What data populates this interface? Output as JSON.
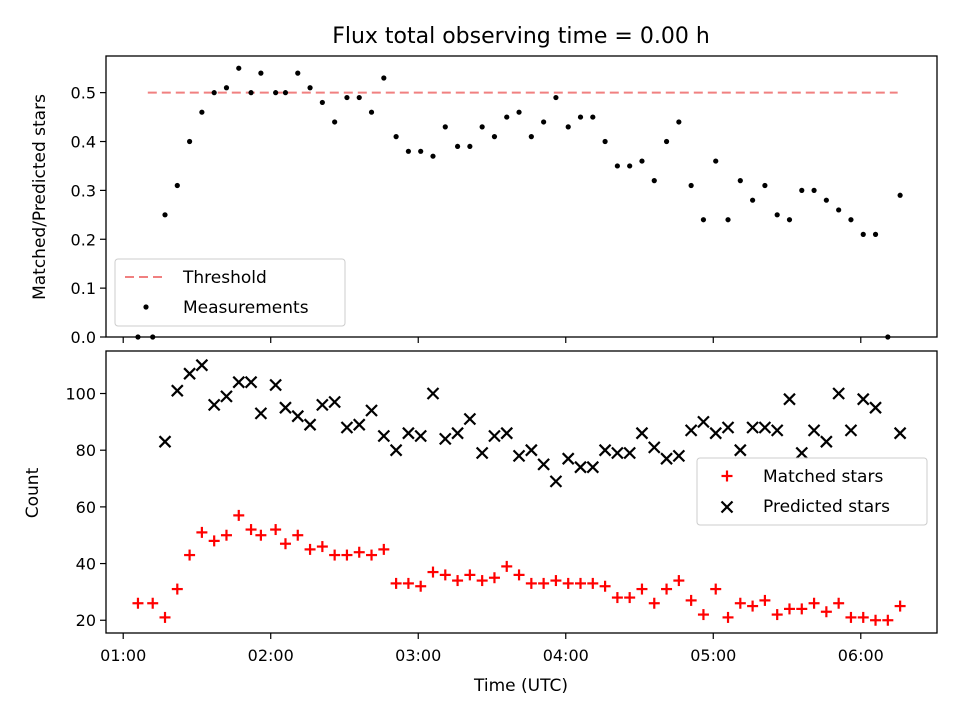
{
  "colors": {
    "threshold": "#f08080",
    "measurements": "#000000",
    "matched": "#ff0000",
    "predicted": "#000000"
  },
  "chart_data": [
    {
      "type": "scatter",
      "title": "Flux total observing time = 0.00 h",
      "xlabel": "",
      "ylabel": "Matched/Predicted stars",
      "ylim": [
        0,
        0.575
      ],
      "yticks": [
        0,
        0.1,
        0.2,
        0.3,
        0.4,
        0.5
      ],
      "ytick_labels": [
        "0.0",
        "0.1",
        "0.2",
        "0.3",
        "0.4",
        "0.5"
      ],
      "grid": false,
      "legend_position": "lower-left",
      "threshold": {
        "name": "Threshold",
        "y": 0.5,
        "x": [
          "01:10",
          "06:15"
        ],
        "style": "dashed"
      },
      "series": [
        {
          "name": "Measurements",
          "marker": "dot",
          "points": [
            [
              "01:06",
              0.0
            ],
            [
              "01:12",
              0.0
            ],
            [
              "01:17",
              0.25
            ],
            [
              "01:22",
              0.31
            ],
            [
              "01:27",
              0.4
            ],
            [
              "01:32",
              0.46
            ],
            [
              "01:37",
              0.5
            ],
            [
              "01:42",
              0.51
            ],
            [
              "01:47",
              0.55
            ],
            [
              "01:52",
              0.5
            ],
            [
              "01:56",
              0.54
            ],
            [
              "02:02",
              0.5
            ],
            [
              "02:06",
              0.5
            ],
            [
              "02:11",
              0.54
            ],
            [
              "02:16",
              0.51
            ],
            [
              "02:21",
              0.48
            ],
            [
              "02:26",
              0.44
            ],
            [
              "02:31",
              0.49
            ],
            [
              "02:36",
              0.49
            ],
            [
              "02:41",
              0.46
            ],
            [
              "02:46",
              0.53
            ],
            [
              "02:51",
              0.41
            ],
            [
              "02:56",
              0.38
            ],
            [
              "03:01",
              0.38
            ],
            [
              "03:06",
              0.37
            ],
            [
              "03:11",
              0.43
            ],
            [
              "03:16",
              0.39
            ],
            [
              "03:21",
              0.39
            ],
            [
              "03:26",
              0.43
            ],
            [
              "03:31",
              0.41
            ],
            [
              "03:36",
              0.45
            ],
            [
              "03:41",
              0.46
            ],
            [
              "03:46",
              0.41
            ],
            [
              "03:51",
              0.44
            ],
            [
              "03:56",
              0.49
            ],
            [
              "04:01",
              0.43
            ],
            [
              "04:06",
              0.45
            ],
            [
              "04:11",
              0.45
            ],
            [
              "04:16",
              0.4
            ],
            [
              "04:21",
              0.35
            ],
            [
              "04:26",
              0.35
            ],
            [
              "04:31",
              0.36
            ],
            [
              "04:36",
              0.32
            ],
            [
              "04:41",
              0.4
            ],
            [
              "04:46",
              0.44
            ],
            [
              "04:51",
              0.31
            ],
            [
              "04:56",
              0.24
            ],
            [
              "05:01",
              0.36
            ],
            [
              "05:06",
              0.24
            ],
            [
              "05:11",
              0.32
            ],
            [
              "05:16",
              0.28
            ],
            [
              "05:21",
              0.31
            ],
            [
              "05:26",
              0.25
            ],
            [
              "05:31",
              0.24
            ],
            [
              "05:36",
              0.3
            ],
            [
              "05:41",
              0.3
            ],
            [
              "05:46",
              0.28
            ],
            [
              "05:51",
              0.26
            ],
            [
              "05:56",
              0.24
            ],
            [
              "06:01",
              0.21
            ],
            [
              "06:06",
              0.21
            ],
            [
              "06:11",
              0.0
            ],
            [
              "06:16",
              0.29
            ]
          ]
        }
      ]
    },
    {
      "type": "scatter",
      "title": "",
      "xlabel": "Time (UTC)",
      "ylabel": "Count",
      "xlim": [
        "00:53",
        "06:31"
      ],
      "xticks": [
        "01:00",
        "02:00",
        "03:00",
        "04:00",
        "05:00",
        "06:00"
      ],
      "ylim": [
        15.5,
        115
      ],
      "yticks": [
        20,
        40,
        60,
        80,
        100
      ],
      "grid": false,
      "legend_position": "center-right",
      "series": [
        {
          "name": "Matched stars",
          "marker": "plus",
          "points": [
            [
              "01:06",
              26
            ],
            [
              "01:12",
              26
            ],
            [
              "01:17",
              21
            ],
            [
              "01:22",
              31
            ],
            [
              "01:27",
              43
            ],
            [
              "01:32",
              51
            ],
            [
              "01:37",
              48
            ],
            [
              "01:42",
              50
            ],
            [
              "01:47",
              57
            ],
            [
              "01:52",
              52
            ],
            [
              "01:56",
              50
            ],
            [
              "02:02",
              52
            ],
            [
              "02:06",
              47
            ],
            [
              "02:11",
              50
            ],
            [
              "02:16",
              45
            ],
            [
              "02:21",
              46
            ],
            [
              "02:26",
              43
            ],
            [
              "02:31",
              43
            ],
            [
              "02:36",
              44
            ],
            [
              "02:41",
              43
            ],
            [
              "02:46",
              45
            ],
            [
              "02:51",
              33
            ],
            [
              "02:56",
              33
            ],
            [
              "03:01",
              32
            ],
            [
              "03:06",
              37
            ],
            [
              "03:11",
              36
            ],
            [
              "03:16",
              34
            ],
            [
              "03:21",
              36
            ],
            [
              "03:26",
              34
            ],
            [
              "03:31",
              35
            ],
            [
              "03:36",
              39
            ],
            [
              "03:41",
              36
            ],
            [
              "03:46",
              33
            ],
            [
              "03:51",
              33
            ],
            [
              "03:56",
              34
            ],
            [
              "04:01",
              33
            ],
            [
              "04:06",
              33
            ],
            [
              "04:11",
              33
            ],
            [
              "04:16",
              32
            ],
            [
              "04:21",
              28
            ],
            [
              "04:26",
              28
            ],
            [
              "04:31",
              31
            ],
            [
              "04:36",
              26
            ],
            [
              "04:41",
              31
            ],
            [
              "04:46",
              34
            ],
            [
              "04:51",
              27
            ],
            [
              "04:56",
              22
            ],
            [
              "05:01",
              31
            ],
            [
              "05:06",
              21
            ],
            [
              "05:11",
              26
            ],
            [
              "05:16",
              25
            ],
            [
              "05:21",
              27
            ],
            [
              "05:26",
              22
            ],
            [
              "05:31",
              24
            ],
            [
              "05:36",
              24
            ],
            [
              "05:41",
              26
            ],
            [
              "05:46",
              23
            ],
            [
              "05:51",
              26
            ],
            [
              "05:56",
              21
            ],
            [
              "06:01",
              21
            ],
            [
              "06:06",
              20
            ],
            [
              "06:11",
              20
            ],
            [
              "06:16",
              25
            ]
          ]
        },
        {
          "name": "Predicted stars",
          "marker": "x",
          "points": [
            [
              "01:17",
              83
            ],
            [
              "01:22",
              101
            ],
            [
              "01:27",
              107
            ],
            [
              "01:32",
              110
            ],
            [
              "01:37",
              96
            ],
            [
              "01:42",
              99
            ],
            [
              "01:47",
              104
            ],
            [
              "01:52",
              104
            ],
            [
              "01:56",
              93
            ],
            [
              "02:02",
              103
            ],
            [
              "02:06",
              95
            ],
            [
              "02:11",
              92
            ],
            [
              "02:16",
              89
            ],
            [
              "02:21",
              96
            ],
            [
              "02:26",
              97
            ],
            [
              "02:31",
              88
            ],
            [
              "02:36",
              89
            ],
            [
              "02:41",
              94
            ],
            [
              "02:46",
              85
            ],
            [
              "02:51",
              80
            ],
            [
              "02:56",
              86
            ],
            [
              "03:01",
              85
            ],
            [
              "03:06",
              100
            ],
            [
              "03:11",
              84
            ],
            [
              "03:16",
              86
            ],
            [
              "03:21",
              91
            ],
            [
              "03:26",
              79
            ],
            [
              "03:31",
              85
            ],
            [
              "03:36",
              86
            ],
            [
              "03:41",
              78
            ],
            [
              "03:46",
              80
            ],
            [
              "03:51",
              75
            ],
            [
              "03:56",
              69
            ],
            [
              "04:01",
              77
            ],
            [
              "04:06",
              74
            ],
            [
              "04:11",
              74
            ],
            [
              "04:16",
              80
            ],
            [
              "04:21",
              79
            ],
            [
              "04:26",
              79
            ],
            [
              "04:31",
              86
            ],
            [
              "04:36",
              81
            ],
            [
              "04:41",
              77
            ],
            [
              "04:46",
              78
            ],
            [
              "04:51",
              87
            ],
            [
              "04:56",
              90
            ],
            [
              "05:01",
              86
            ],
            [
              "05:06",
              88
            ],
            [
              "05:11",
              80
            ],
            [
              "05:16",
              88
            ],
            [
              "05:21",
              88
            ],
            [
              "05:26",
              87
            ],
            [
              "05:31",
              98
            ],
            [
              "05:36",
              79
            ],
            [
              "05:41",
              87
            ],
            [
              "05:46",
              83
            ],
            [
              "05:51",
              100
            ],
            [
              "05:56",
              87
            ],
            [
              "06:01",
              98
            ],
            [
              "06:06",
              95
            ],
            [
              "06:16",
              86
            ]
          ]
        }
      ]
    }
  ]
}
